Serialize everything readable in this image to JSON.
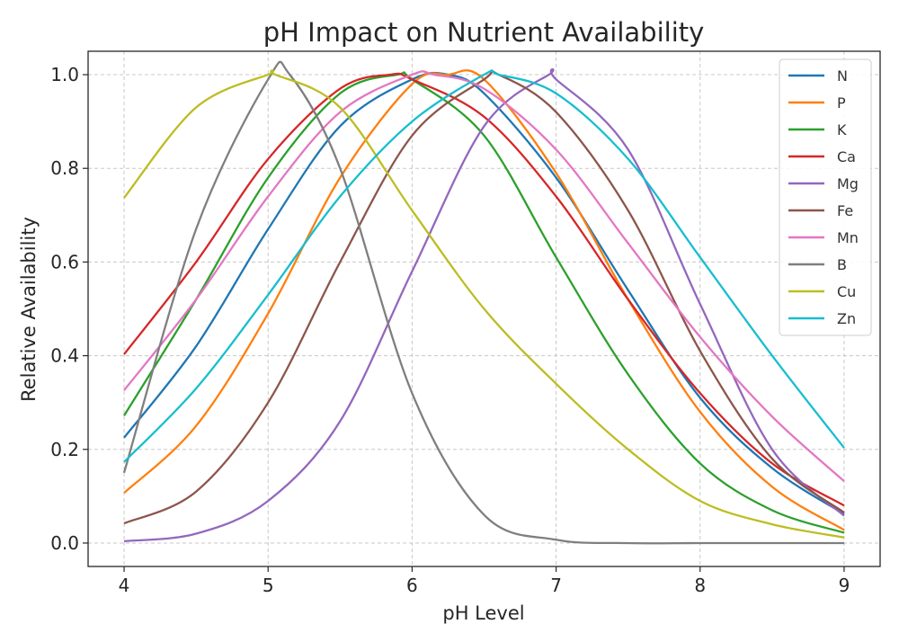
{
  "chart_data": {
    "type": "line",
    "title": "pH Impact on Nutrient Availability",
    "xlabel": "pH Level",
    "ylabel": "Relative Availability",
    "xlim": [
      3.75,
      9.25
    ],
    "ylim": [
      -0.05,
      1.05
    ],
    "xticks": [
      4,
      5,
      6,
      7,
      8,
      9
    ],
    "yticks": [
      0.0,
      0.2,
      0.4,
      0.6,
      0.8,
      1.0
    ],
    "xtick_labels": [
      "4",
      "5",
      "6",
      "7",
      "8",
      "9"
    ],
    "ytick_labels": [
      "0.0",
      "0.2",
      "0.4",
      "0.6",
      "0.8",
      "1.0"
    ],
    "grid": true,
    "legend_position": "top-right",
    "x_samples": [
      4.0,
      4.5,
      5.0,
      5.5,
      6.0,
      6.5,
      7.0,
      7.5,
      8.0,
      8.5,
      9.0
    ],
    "series": [
      {
        "name": "N",
        "color": "#1f77b4",
        "peak_ph": 6.25,
        "values": [
          0.225,
          0.42,
          0.67,
          0.89,
          0.99,
          0.96,
          0.78,
          0.54,
          0.31,
          0.16,
          0.062
        ]
      },
      {
        "name": "P",
        "color": "#ff7f0e",
        "peak_ph": 6.25,
        "values": [
          0.107,
          0.25,
          0.49,
          0.78,
          0.98,
          0.99,
          0.79,
          0.52,
          0.28,
          0.12,
          0.028
        ]
      },
      {
        "name": "K",
        "color": "#2ca02c",
        "peak_ph": 5.9,
        "values": [
          0.272,
          0.52,
          0.78,
          0.96,
          0.99,
          0.87,
          0.61,
          0.36,
          0.17,
          0.07,
          0.022
        ]
      },
      {
        "name": "Ca",
        "color": "#d62728",
        "peak_ph": 5.85,
        "values": [
          0.403,
          0.6,
          0.82,
          0.97,
          0.99,
          0.91,
          0.74,
          0.52,
          0.32,
          0.17,
          0.08
        ]
      },
      {
        "name": "Mg",
        "color": "#9467bd",
        "peak_ph": 6.95,
        "values": [
          0.004,
          0.02,
          0.09,
          0.26,
          0.58,
          0.89,
          0.99,
          0.84,
          0.51,
          0.2,
          0.058
        ]
      },
      {
        "name": "Fe",
        "color": "#8c564b",
        "peak_ph": 6.6,
        "values": [
          0.042,
          0.11,
          0.3,
          0.6,
          0.87,
          0.99,
          0.92,
          0.71,
          0.41,
          0.18,
          0.065
        ]
      },
      {
        "name": "Mn",
        "color": "#e377c2",
        "peak_ph": 6.15,
        "values": [
          0.326,
          0.52,
          0.74,
          0.92,
          1.0,
          0.97,
          0.84,
          0.64,
          0.44,
          0.27,
          0.132
        ]
      },
      {
        "name": "B",
        "color": "#7f7f7f",
        "peak_ph": 5.15,
        "values": [
          0.15,
          0.67,
          0.99,
          0.8,
          0.32,
          0.06,
          0.007,
          0.0,
          0.0,
          0.0,
          0.0
        ]
      },
      {
        "name": "Cu",
        "color": "#bcbd22",
        "peak_ph": 5.05,
        "values": [
          0.737,
          0.93,
          1.0,
          0.93,
          0.71,
          0.5,
          0.34,
          0.2,
          0.09,
          0.04,
          0.012
        ]
      },
      {
        "name": "Zn",
        "color": "#17becf",
        "peak_ph": 6.6,
        "values": [
          0.173,
          0.33,
          0.53,
          0.74,
          0.9,
          1.0,
          0.96,
          0.82,
          0.61,
          0.4,
          0.203
        ]
      }
    ]
  }
}
